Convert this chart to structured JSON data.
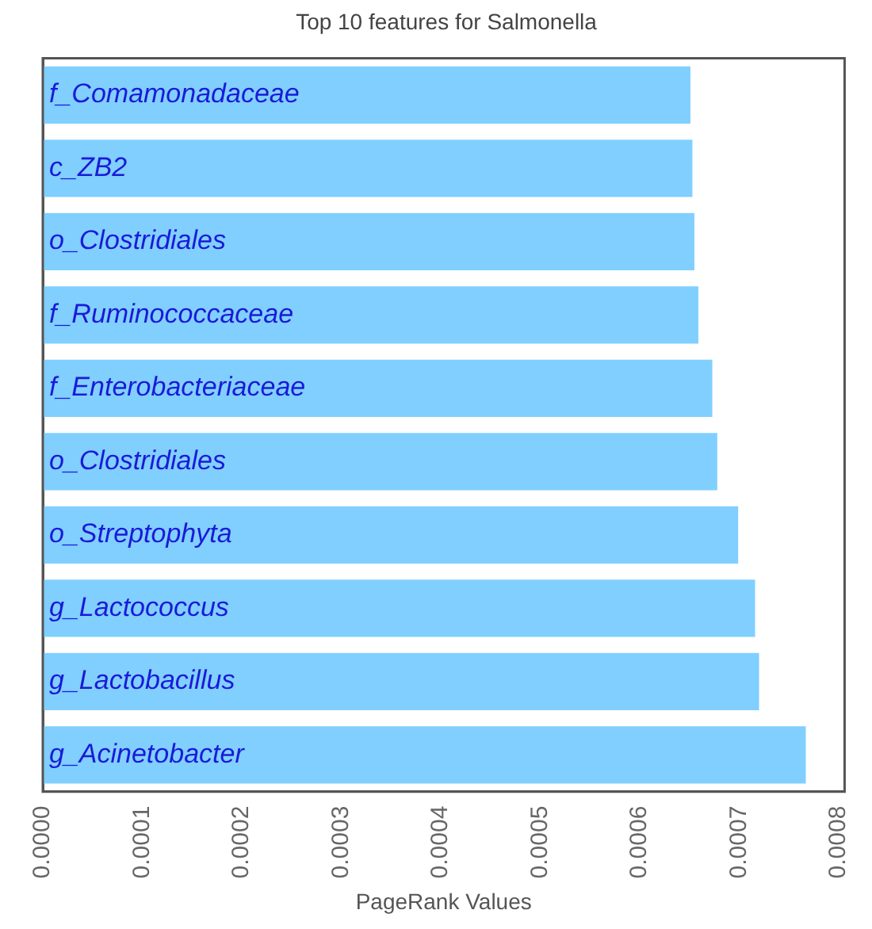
{
  "chart_data": {
    "type": "bar",
    "orientation": "horizontal",
    "title": "Top 10 features for Salmonella",
    "xlabel": "PageRank Values",
    "categories": [
      "f_Comamonadaceae",
      "c_ZB2",
      "o_Clostridiales",
      "f_Ruminococcaceae",
      "f_Enterobacteriaceae",
      "o_Clostridiales",
      "o_Streptophyta",
      "g_Lactococcus",
      "g_Lactobacillus",
      "g_Acinetobacter"
    ],
    "values": [
      0.000651,
      0.000653,
      0.000655,
      0.000659,
      0.000673,
      0.000678,
      0.000699,
      0.000716,
      0.00072,
      0.000767
    ],
    "color": "#80cfff",
    "xlim": [
      0,
      0.000806
    ],
    "xticks": [
      {
        "value": 0,
        "label": "0.0000"
      },
      {
        "value": 0.0001,
        "label": "0.0001"
      },
      {
        "value": 0.0002,
        "label": "0.0002"
      },
      {
        "value": 0.0003,
        "label": "0.0003"
      },
      {
        "value": 0.0004,
        "label": "0.0004"
      },
      {
        "value": 0.0005,
        "label": "0.0005"
      },
      {
        "value": 0.0006,
        "label": "0.0006"
      },
      {
        "value": 0.0007,
        "label": "0.0007"
      },
      {
        "value": 0.0008,
        "label": "0.0008"
      }
    ],
    "grid": false,
    "legend": false
  }
}
